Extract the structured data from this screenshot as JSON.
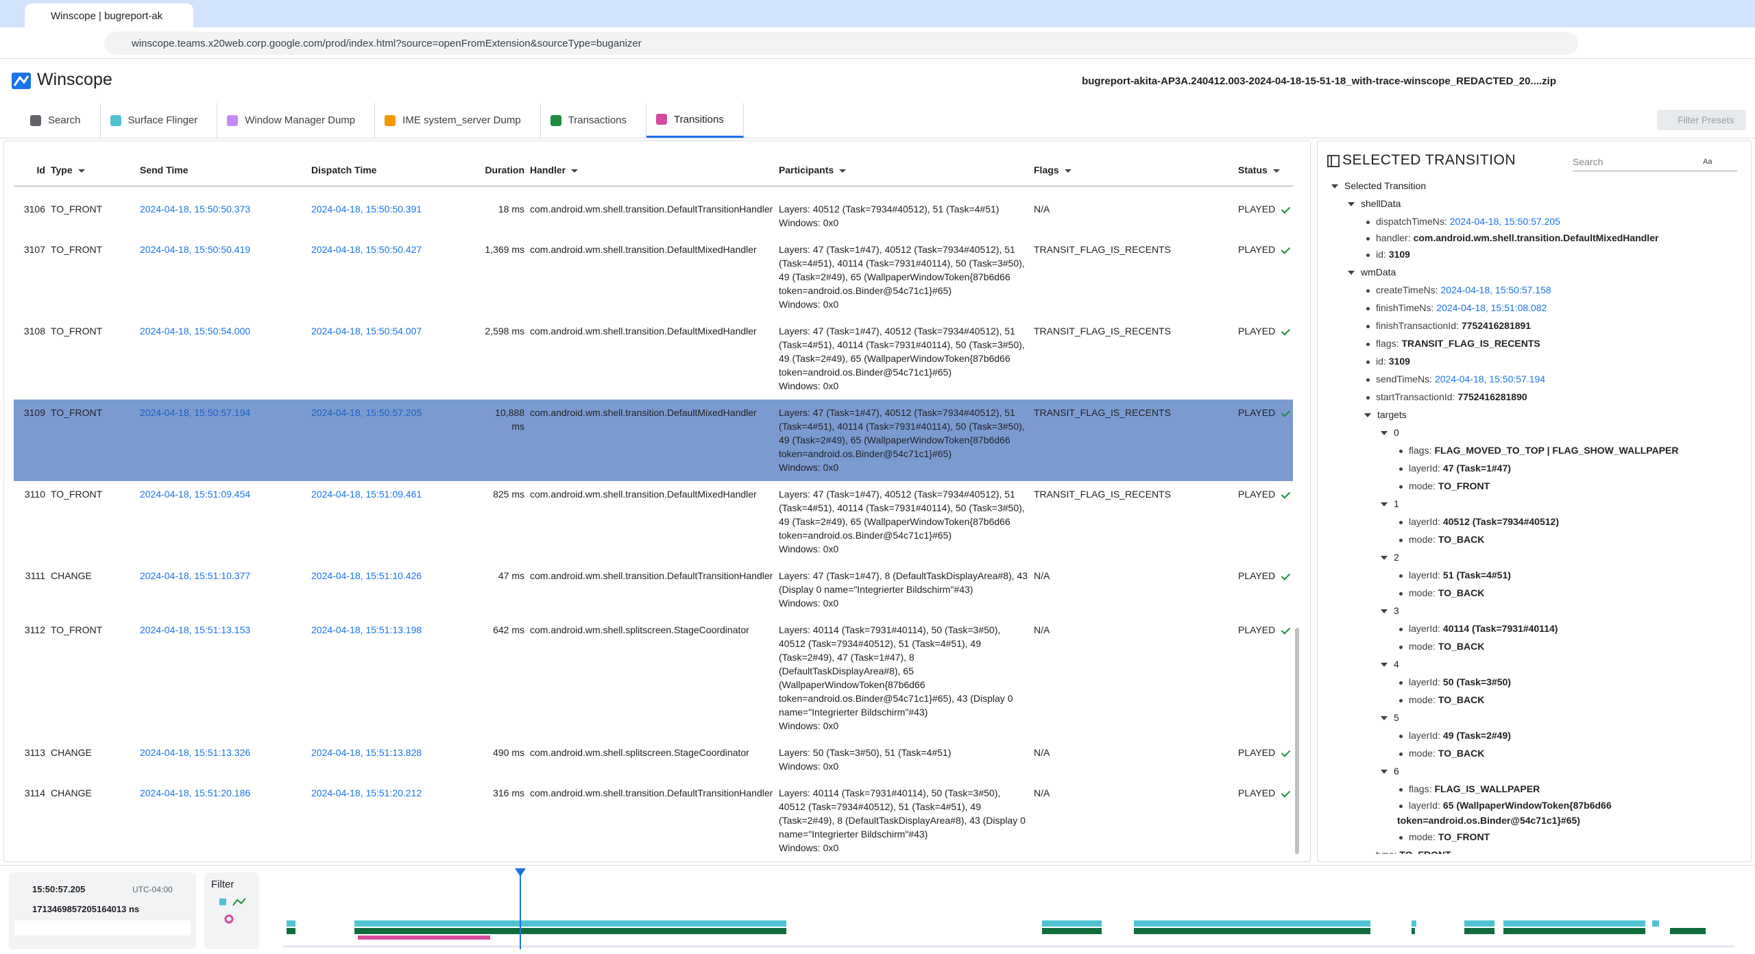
{
  "browser": {
    "tab_title": "Winscope | bugreport-ak",
    "url": "winscope.teams.x20web.corp.google.com/prod/index.html?source=openFromExtension&sourceType=buganizer"
  },
  "app": {
    "title": "Winscope",
    "filename": "bugreport-akita-AP3A.240412.003-2024-04-18-15-51-18_with-trace-winscope_REDACTED_20....zip",
    "tabs": [
      "Search",
      "Surface Flinger",
      "Window Manager Dump",
      "IME system_server Dump",
      "Transactions",
      "Transitions"
    ],
    "filter_presets": "Filter Presets"
  },
  "table": {
    "columns": [
      "Id",
      "Type",
      "Send Time",
      "Dispatch Time",
      "Duration",
      "Handler",
      "Participants",
      "Flags",
      "Status"
    ],
    "rows": [
      {
        "id": "3106",
        "type": "TO_FRONT",
        "send_time": "2024-04-18, 15:50:50.373",
        "dispatch_time": "2024-04-18, 15:50:50.391",
        "duration": "18 ms",
        "handler": "com.android.wm.shell.transition.DefaultTransitionHandler",
        "layers": "Layers: 40512 (Task=7934#40512), 51 (Task=4#51)",
        "windows": "Windows: 0x0",
        "flags": "N/A",
        "status": "PLAYED"
      },
      {
        "id": "3107",
        "type": "TO_FRONT",
        "send_time": "2024-04-18, 15:50:50.419",
        "dispatch_time": "2024-04-18, 15:50:50.427",
        "duration": "1,369 ms",
        "handler": "com.android.wm.shell.transition.DefaultMixedHandler",
        "layers": "Layers: 47 (Task=1#47), 40512 (Task=7934#40512), 51 (Task=4#51), 40114 (Task=7931#40114), 50 (Task=3#50), 49 (Task=2#49), 65 (WallpaperWindowToken{87b6d66 token=android.os.Binder@54c71c1}#65)",
        "windows": "Windows: 0x0",
        "flags": "TRANSIT_FLAG_IS_RECENTS",
        "status": "PLAYED"
      },
      {
        "id": "3108",
        "type": "TO_FRONT",
        "send_time": "2024-04-18, 15:50:54.000",
        "dispatch_time": "2024-04-18, 15:50:54.007",
        "duration": "2,598 ms",
        "handler": "com.android.wm.shell.transition.DefaultMixedHandler",
        "layers": "Layers: 47 (Task=1#47), 40512 (Task=7934#40512), 51 (Task=4#51), 40114 (Task=7931#40114), 50 (Task=3#50), 49 (Task=2#49), 65 (WallpaperWindowToken{87b6d66 token=android.os.Binder@54c71c1}#65)",
        "windows": "Windows: 0x0",
        "flags": "TRANSIT_FLAG_IS_RECENTS",
        "status": "PLAYED"
      },
      {
        "id": "3109",
        "type": "TO_FRONT",
        "send_time": "2024-04-18, 15:50:57.194",
        "dispatch_time": "2024-04-18, 15:50:57.205",
        "duration": "10,888 ms",
        "handler": "com.android.wm.shell.transition.DefaultMixedHandler",
        "layers": "Layers: 47 (Task=1#47), 40512 (Task=7934#40512), 51 (Task=4#51), 40114 (Task=7931#40114), 50 (Task=3#50), 49 (Task=2#49), 65 (WallpaperWindowToken{87b6d66 token=android.os.Binder@54c71c1}#65)",
        "windows": "Windows: 0x0",
        "flags": "TRANSIT_FLAG_IS_RECENTS",
        "status": "PLAYED",
        "selected": true
      },
      {
        "id": "3110",
        "type": "TO_FRONT",
        "send_time": "2024-04-18, 15:51:09.454",
        "dispatch_time": "2024-04-18, 15:51:09.461",
        "duration": "825 ms",
        "handler": "com.android.wm.shell.transition.DefaultMixedHandler",
        "layers": "Layers: 47 (Task=1#47), 40512 (Task=7934#40512), 51 (Task=4#51), 40114 (Task=7931#40114), 50 (Task=3#50), 49 (Task=2#49), 65 (WallpaperWindowToken{87b6d66 token=android.os.Binder@54c71c1}#65)",
        "windows": "Windows: 0x0",
        "flags": "TRANSIT_FLAG_IS_RECENTS",
        "status": "PLAYED"
      },
      {
        "id": "3111",
        "type": "CHANGE",
        "send_time": "2024-04-18, 15:51:10.377",
        "dispatch_time": "2024-04-18, 15:51:10.426",
        "duration": "47 ms",
        "handler": "com.android.wm.shell.transition.DefaultTransitionHandler",
        "layers": "Layers: 47 (Task=1#47), 8 (DefaultTaskDisplayArea#8), 43 (Display 0 name=\"Integrierter Bildschirm\"#43)",
        "windows": "Windows: 0x0",
        "flags": "N/A",
        "status": "PLAYED"
      },
      {
        "id": "3112",
        "type": "TO_FRONT",
        "send_time": "2024-04-18, 15:51:13.153",
        "dispatch_time": "2024-04-18, 15:51:13.198",
        "duration": "642 ms",
        "handler": "com.android.wm.shell.splitscreen.StageCoordinator",
        "layers": "Layers: 40114 (Task=7931#40114), 50 (Task=3#50), 40512 (Task=7934#40512), 51 (Task=4#51), 49 (Task=2#49), 47 (Task=1#47), 8 (DefaultTaskDisplayArea#8), 65 (WallpaperWindowToken{87b6d66 token=android.os.Binder@54c71c1}#65), 43 (Display 0 name=\"Integrierter Bildschirm\"#43)",
        "windows": "Windows: 0x0",
        "flags": "N/A",
        "status": "PLAYED"
      },
      {
        "id": "3113",
        "type": "CHANGE",
        "send_time": "2024-04-18, 15:51:13.326",
        "dispatch_time": "2024-04-18, 15:51:13.828",
        "duration": "490 ms",
        "handler": "com.android.wm.shell.splitscreen.StageCoordinator",
        "layers": "Layers: 50 (Task=3#50), 51 (Task=4#51)",
        "windows": "Windows: 0x0",
        "flags": "N/A",
        "status": "PLAYED"
      },
      {
        "id": "3114",
        "type": "CHANGE",
        "send_time": "2024-04-18, 15:51:20.186",
        "dispatch_time": "2024-04-18, 15:51:20.212",
        "duration": "316 ms",
        "handler": "com.android.wm.shell.transition.DefaultTransitionHandler",
        "layers": "Layers: 40114 (Task=7931#40114), 50 (Task=3#50), 40512 (Task=7934#40512), 51 (Task=4#51), 49 (Task=2#49), 8 (DefaultTaskDisplayArea#8), 43 (Display 0 name=\"Integrierter Bildschirm\"#43)",
        "windows": "Windows: 0x0",
        "flags": "N/A",
        "status": "PLAYED"
      }
    ]
  },
  "details": {
    "title": "SELECTED TRANSITION",
    "search_placeholder": "Search",
    "match_case": "Aa",
    "tree": {
      "label": "Selected Transition",
      "children": [
        {
          "label": "shellData",
          "children": [
            {
              "key": "dispatchTimeNs:",
              "timestamp": "2024-04-18, 15:50:57.205"
            },
            {
              "key": "handler:",
              "value": "com.android.wm.shell.transition.DefaultMixedHandler"
            },
            {
              "key": "id:",
              "value": "3109"
            }
          ]
        },
        {
          "label": "wmData",
          "children": [
            {
              "key": "createTimeNs:",
              "timestamp": "2024-04-18, 15:50:57.158"
            },
            {
              "key": "finishTimeNs:",
              "timestamp": "2024-04-18, 15:51:08.082"
            },
            {
              "key": "finishTransactionId:",
              "value": "7752416281891"
            },
            {
              "key": "flags:",
              "value": "TRANSIT_FLAG_IS_RECENTS"
            },
            {
              "key": "id:",
              "value": "3109"
            },
            {
              "key": "sendTimeNs:",
              "timestamp": "2024-04-18, 15:50:57.194"
            },
            {
              "key": "startTransactionId:",
              "value": "7752416281890"
            },
            {
              "label": "targets",
              "children": [
                {
                  "label": "0",
                  "children": [
                    {
                      "key": "flags:",
                      "value": "FLAG_MOVED_TO_TOP | FLAG_SHOW_WALLPAPER"
                    },
                    {
                      "key": "layerId:",
                      "value": "47 (Task=1#47)"
                    },
                    {
                      "key": "mode:",
                      "value": "TO_FRONT"
                    }
                  ]
                },
                {
                  "label": "1",
                  "children": [
                    {
                      "key": "layerId:",
                      "value": "40512 (Task=7934#40512)"
                    },
                    {
                      "key": "mode:",
                      "value": "TO_BACK"
                    }
                  ]
                },
                {
                  "label": "2",
                  "children": [
                    {
                      "key": "layerId:",
                      "value": "51 (Task=4#51)"
                    },
                    {
                      "key": "mode:",
                      "value": "TO_BACK"
                    }
                  ]
                },
                {
                  "label": "3",
                  "children": [
                    {
                      "key": "layerId:",
                      "value": "40114 (Task=7931#40114)"
                    },
                    {
                      "key": "mode:",
                      "value": "TO_BACK"
                    }
                  ]
                },
                {
                  "label": "4",
                  "children": [
                    {
                      "key": "layerId:",
                      "value": "50 (Task=3#50)"
                    },
                    {
                      "key": "mode:",
                      "value": "TO_BACK"
                    }
                  ]
                },
                {
                  "label": "5",
                  "children": [
                    {
                      "key": "layerId:",
                      "value": "49 (Task=2#49)"
                    },
                    {
                      "key": "mode:",
                      "value": "TO_BACK"
                    }
                  ]
                },
                {
                  "label": "6",
                  "children": [
                    {
                      "key": "flags:",
                      "value": "FLAG_IS_WALLPAPER"
                    },
                    {
                      "key": "layerId:",
                      "value": "65 (WallpaperWindowToken{87b6d66 token=android.os.Binder@54c71c1}#65)"
                    },
                    {
                      "key": "mode:",
                      "value": "TO_FRONT"
                    }
                  ]
                }
              ]
            },
            {
              "key": "type:",
              "value": "TO_FRONT"
            }
          ]
        }
      ]
    }
  },
  "timeline": {
    "time": "15:50:57.205",
    "timezone": "UTC-04:00",
    "timestamp_ns": "1713469857205164013 ns",
    "filter": "Filter"
  }
}
